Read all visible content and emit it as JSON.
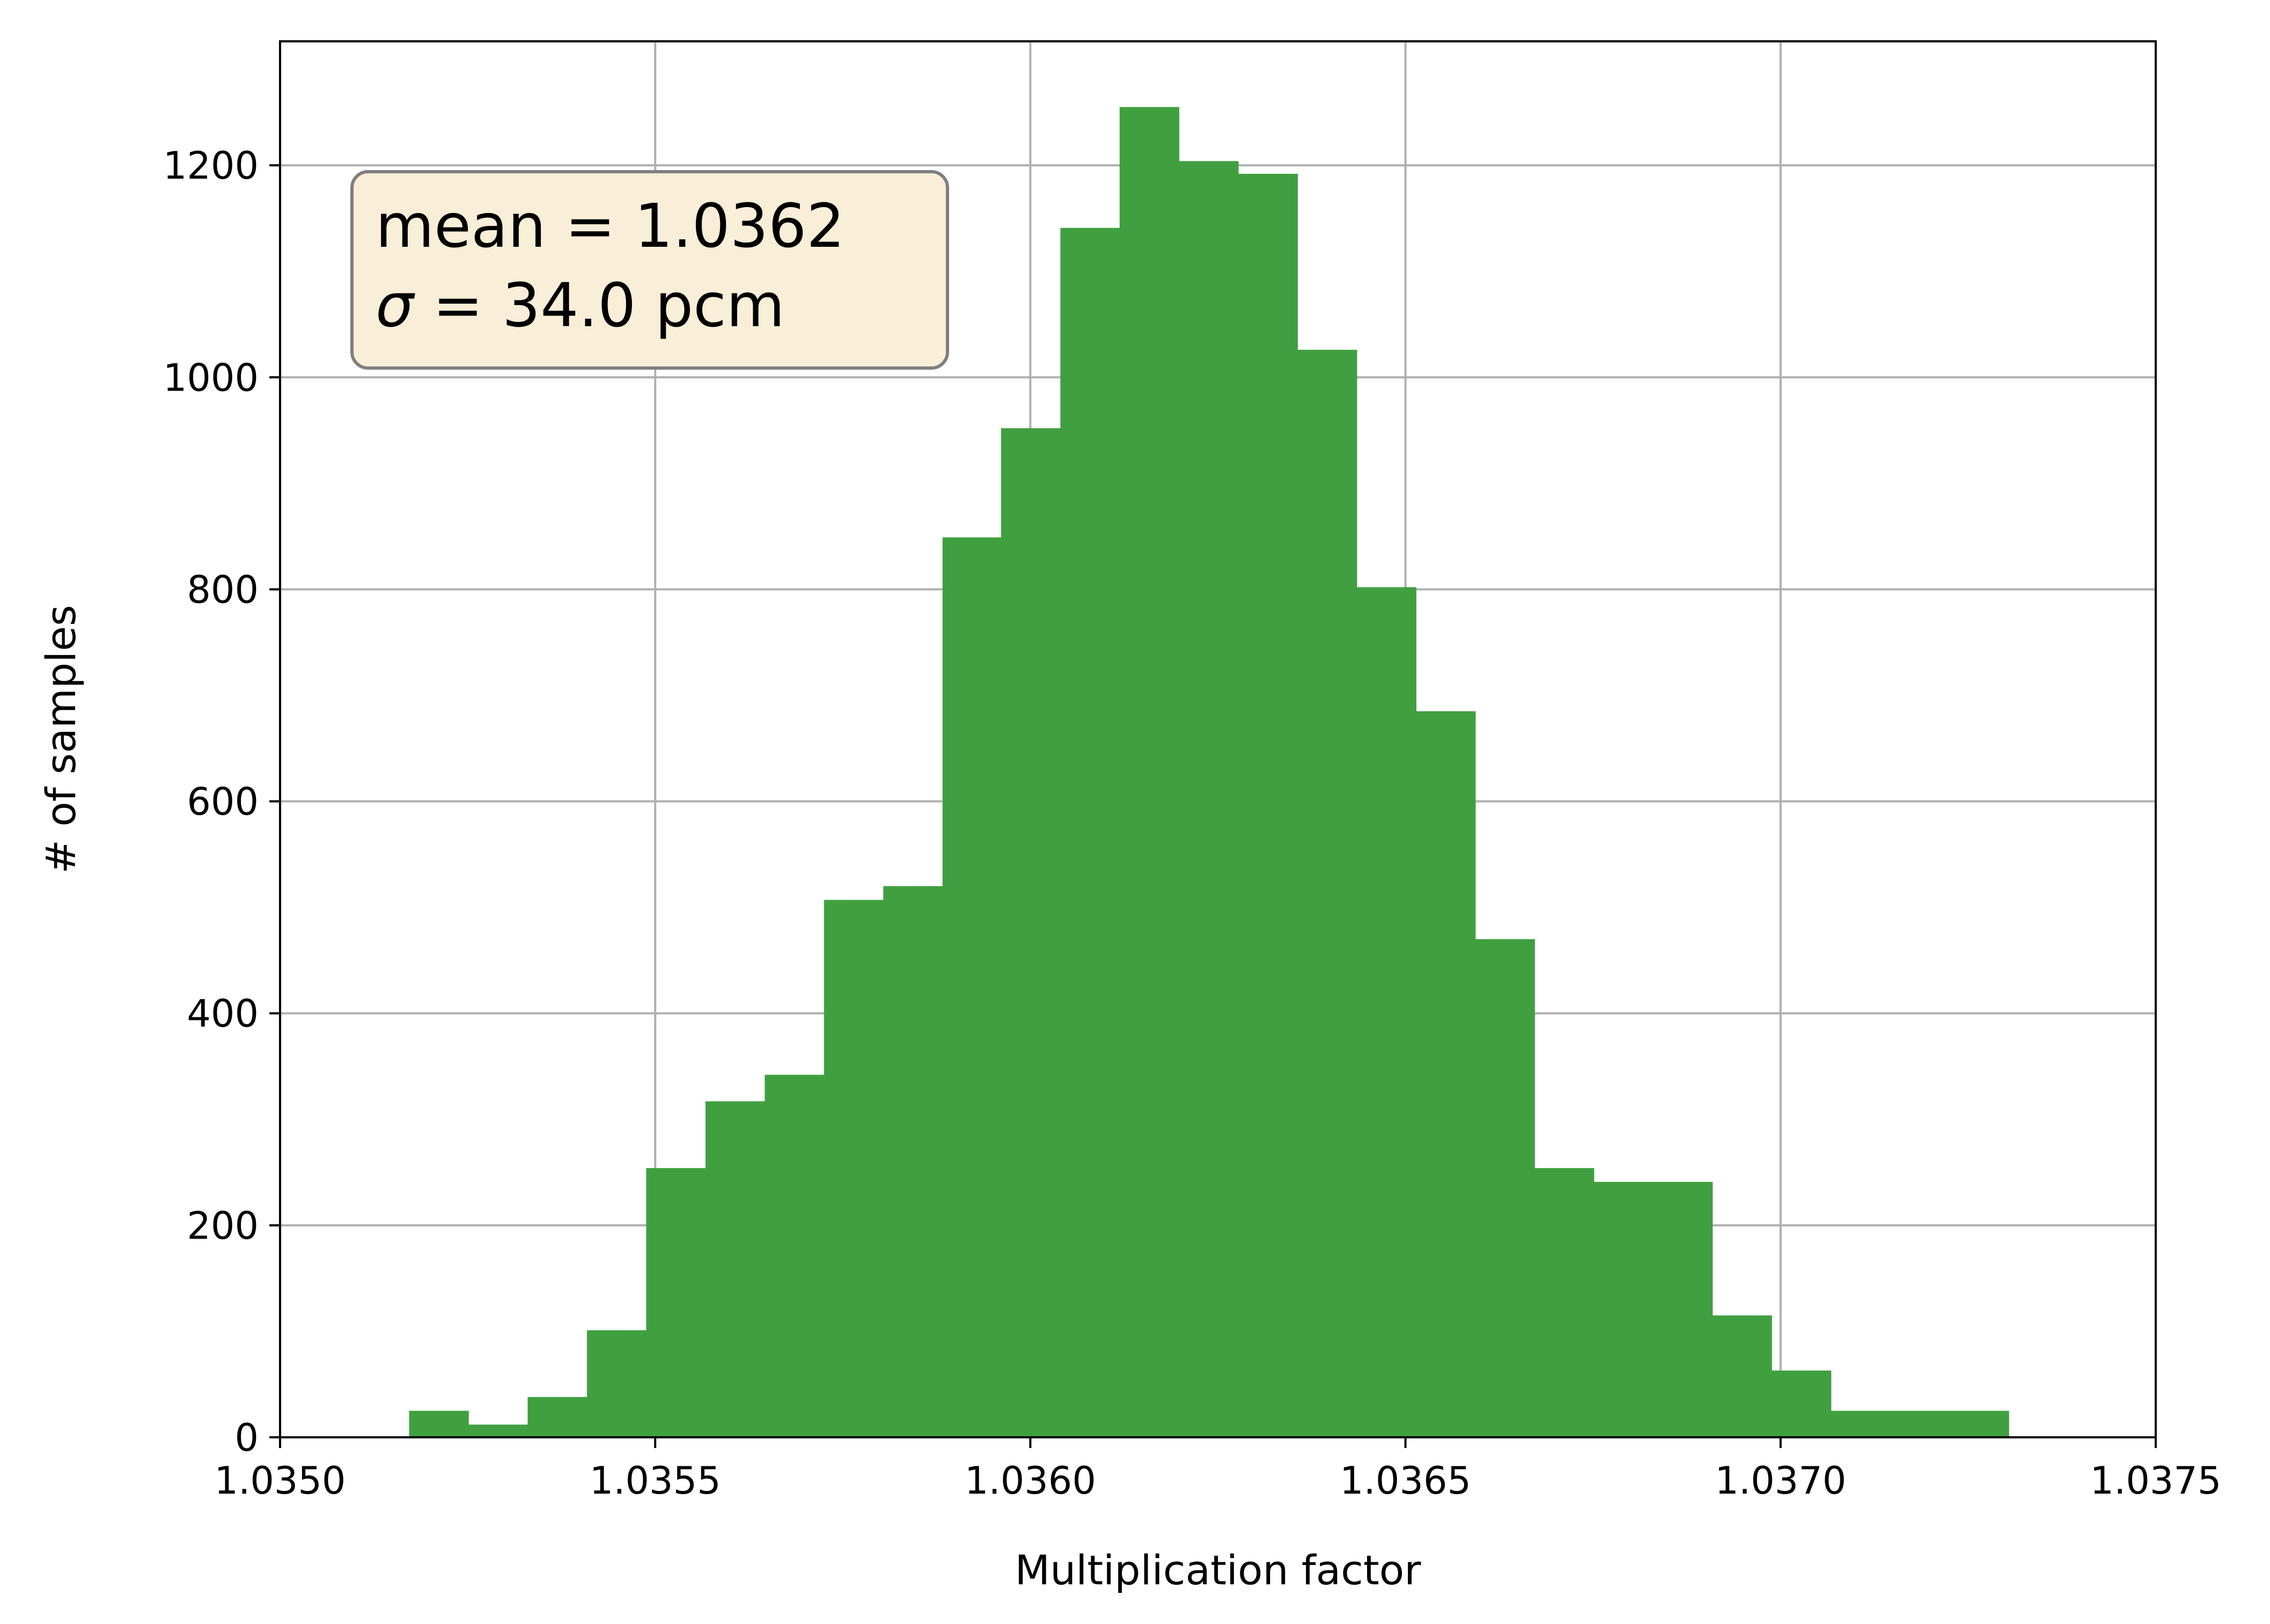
{
  "chart_data": {
    "type": "bar",
    "subtype": "histogram",
    "title": "",
    "xlabel": "Multiplication factor",
    "ylabel": "# of samples",
    "xlim": [
      1.035,
      1.0375
    ],
    "ylim": [
      0,
      1317
    ],
    "xticks": [
      1.035,
      1.0355,
      1.036,
      1.0365,
      1.037,
      1.0375
    ],
    "xtick_labels": [
      "1.0350",
      "1.0355",
      "1.0360",
      "1.0365",
      "1.0370",
      "1.0375"
    ],
    "yticks": [
      0,
      200,
      400,
      600,
      800,
      1000,
      1200
    ],
    "ytick_labels": [
      "0",
      "200",
      "400",
      "600",
      "800",
      "1000",
      "1200"
    ],
    "grid": true,
    "bar_color": "#40a040",
    "bin_edges": [
      1.035172,
      1.035251,
      1.03533,
      1.035409,
      1.035488,
      1.035567,
      1.035646,
      1.035725,
      1.035804,
      1.035883,
      1.035961,
      1.03604,
      1.036119,
      1.036198,
      1.036277,
      1.036356,
      1.036435,
      1.036514,
      1.036593,
      1.036672,
      1.036751,
      1.03683,
      1.036909,
      1.036988,
      1.037067,
      1.037146,
      1.037225,
      1.037304
    ],
    "counts": [
      25,
      12,
      38,
      101,
      254,
      317,
      342,
      507,
      520,
      849,
      952,
      1141,
      1255,
      1204,
      1192,
      1026,
      802,
      685,
      470,
      254,
      241,
      241,
      115,
      63,
      25,
      25,
      25
    ],
    "annotation": {
      "line1": "mean = 1.0362",
      "line2_symbol": "σ",
      "line2_rest": " = 34.0 pcm",
      "facecolor": "#f9eed7",
      "edgecolor": "#7f7f7f",
      "placement": "top-left"
    }
  }
}
